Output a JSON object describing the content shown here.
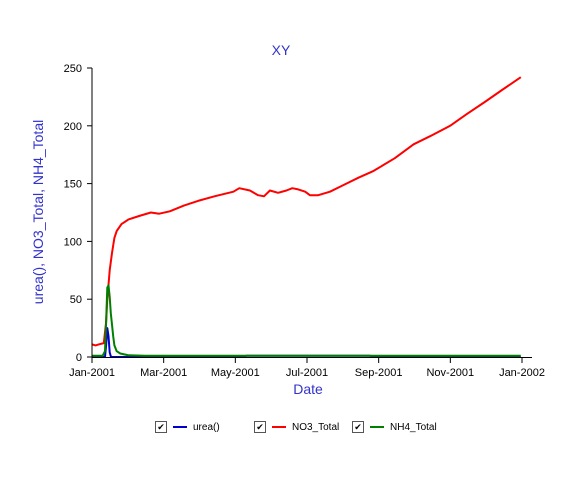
{
  "chart_data": {
    "type": "line",
    "title": "XY",
    "xlabel": "Date",
    "ylabel": "urea(), NO3_Total, NH4_Total",
    "xlim": [
      "2001-01-01",
      "2002-01-01"
    ],
    "ylim": [
      0,
      250
    ],
    "x_ticks": [
      "Jan-2001",
      "Mar-2001",
      "May-2001",
      "Jul-2001",
      "Sep-2001",
      "Nov-2001",
      "Jan-2002"
    ],
    "y_ticks": [
      "0",
      "50",
      "100",
      "150",
      "200",
      "250"
    ],
    "grid": false,
    "legend_position": "bottom",
    "colors": {
      "title": "#3333cc",
      "axis_title": "#3333cc"
    },
    "series": [
      {
        "name": "urea()",
        "color": "#0000cc",
        "points": [
          [
            "2001-01-01",
            0
          ],
          [
            "2001-01-12",
            0
          ],
          [
            "2001-01-13",
            10
          ],
          [
            "2001-01-14",
            25
          ],
          [
            "2001-01-15",
            18
          ],
          [
            "2001-01-16",
            4
          ],
          [
            "2001-01-17",
            0.5
          ],
          [
            "2001-01-18",
            0
          ],
          [
            "2001-05-10",
            0
          ],
          [
            "2001-05-12",
            1
          ],
          [
            "2001-08-25",
            1
          ],
          [
            "2001-08-28",
            0
          ],
          [
            "2001-12-31",
            0
          ]
        ]
      },
      {
        "name": "NO3_Total",
        "color": "#ff0000",
        "points": [
          [
            "2001-01-01",
            11
          ],
          [
            "2001-01-04",
            10
          ],
          [
            "2001-01-07",
            11
          ],
          [
            "2001-01-11",
            12
          ],
          [
            "2001-01-13",
            30
          ],
          [
            "2001-01-14",
            50
          ],
          [
            "2001-01-16",
            75
          ],
          [
            "2001-01-18",
            90
          ],
          [
            "2001-01-20",
            103
          ],
          [
            "2001-01-22",
            109
          ],
          [
            "2001-01-26",
            115
          ],
          [
            "2001-02-01",
            119
          ],
          [
            "2001-02-10",
            122
          ],
          [
            "2001-02-20",
            125
          ],
          [
            "2001-02-27",
            124
          ],
          [
            "2001-03-08",
            126
          ],
          [
            "2001-03-20",
            131
          ],
          [
            "2001-04-01",
            135
          ],
          [
            "2001-04-15",
            139
          ],
          [
            "2001-05-01",
            143
          ],
          [
            "2001-05-06",
            146
          ],
          [
            "2001-05-15",
            144
          ],
          [
            "2001-05-22",
            140
          ],
          [
            "2001-05-27",
            139
          ],
          [
            "2001-06-01",
            144
          ],
          [
            "2001-06-08",
            142
          ],
          [
            "2001-06-15",
            144
          ],
          [
            "2001-06-20",
            146
          ],
          [
            "2001-06-25",
            145
          ],
          [
            "2001-07-01",
            143
          ],
          [
            "2001-07-05",
            140
          ],
          [
            "2001-07-12",
            140
          ],
          [
            "2001-07-22",
            143
          ],
          [
            "2001-08-01",
            148
          ],
          [
            "2001-08-15",
            155
          ],
          [
            "2001-08-28",
            161
          ],
          [
            "2001-09-15",
            172
          ],
          [
            "2001-10-01",
            184
          ],
          [
            "2001-10-15",
            191
          ],
          [
            "2001-11-01",
            200
          ],
          [
            "2001-11-15",
            210
          ],
          [
            "2001-12-01",
            221
          ],
          [
            "2001-12-15",
            231
          ],
          [
            "2001-12-31",
            242
          ]
        ]
      },
      {
        "name": "NH4_Total",
        "color": "#008000",
        "points": [
          [
            "2001-01-01",
            1
          ],
          [
            "2001-01-10",
            1
          ],
          [
            "2001-01-12",
            5
          ],
          [
            "2001-01-13",
            30
          ],
          [
            "2001-01-14",
            60
          ],
          [
            "2001-01-15",
            62
          ],
          [
            "2001-01-16",
            52
          ],
          [
            "2001-01-17",
            38
          ],
          [
            "2001-01-18",
            28
          ],
          [
            "2001-01-19",
            18
          ],
          [
            "2001-01-20",
            10
          ],
          [
            "2001-01-22",
            5
          ],
          [
            "2001-01-25",
            3
          ],
          [
            "2001-02-01",
            1.5
          ],
          [
            "2001-02-15",
            1
          ],
          [
            "2001-12-31",
            1
          ]
        ]
      }
    ]
  }
}
